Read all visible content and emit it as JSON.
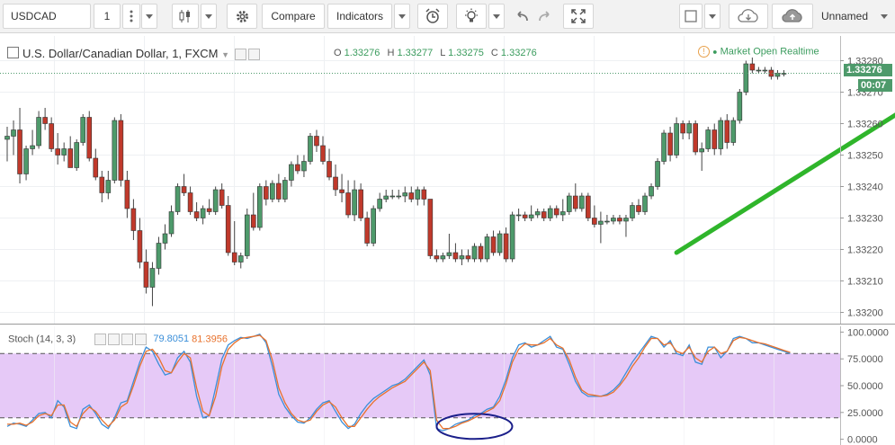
{
  "toolbar": {
    "symbol": "USDCAD",
    "interval": "1",
    "compare_label": "Compare",
    "indicators_label": "Indicators",
    "layout_name": "Unnamed"
  },
  "header": {
    "title": "U.S. Dollar/Canadian Dollar, 1, FXCM",
    "o_label": "O",
    "o": "1.33276",
    "h_label": "H",
    "h": "1.33277",
    "l_label": "L",
    "l": "1.33275",
    "c_label": "C",
    "c": "1.33276",
    "market_status": "Market Open",
    "realtime": "Realtime",
    "price_tag": "1.33276",
    "countdown": "00:07"
  },
  "stoch_legend": {
    "name": "Stoch (14, 3, 3)",
    "k": "79.8051",
    "d": "81.3956"
  },
  "colors": {
    "up": "#4e9a6b",
    "down": "#c0392b",
    "k_line": "#3b8fd9",
    "d_line": "#e8722d",
    "band_fill": "#e6c9f7",
    "arrow": "#2fb52b",
    "ellipse": "#1b1f8a"
  },
  "chart_data": [
    {
      "type": "candlestick",
      "title": "U.S. Dollar/Canadian Dollar, 1, FXCM",
      "y_ticks": [
        "1.33280",
        "1.33270",
        "1.33260",
        "1.33250",
        "1.33240",
        "1.33230",
        "1.33220",
        "1.33210",
        "1.33200"
      ],
      "y_tick_values": [
        1.3328,
        1.3327,
        1.3326,
        1.3325,
        1.3324,
        1.3323,
        1.3322,
        1.3321,
        1.332
      ],
      "ylim": [
        1.33197,
        1.33285
      ],
      "last_price": 1.33276,
      "annotations": [
        {
          "type": "arrow",
          "from": [
            106,
            1.33219
          ],
          "to": [
            148,
            1.33272
          ],
          "color": "green"
        }
      ],
      "candles": [
        [
          1.33255,
          1.33259,
          1.33248,
          1.33256
        ],
        [
          1.33256,
          1.33261,
          1.3325,
          1.33258
        ],
        [
          1.33258,
          1.33265,
          1.33241,
          1.33244
        ],
        [
          1.33244,
          1.33253,
          1.33242,
          1.33252
        ],
        [
          1.33252,
          1.33258,
          1.3325,
          1.33253
        ],
        [
          1.33253,
          1.33264,
          1.33252,
          1.33262
        ],
        [
          1.33262,
          1.33265,
          1.33258,
          1.3326
        ],
        [
          1.3326,
          1.33262,
          1.33251,
          1.33252
        ],
        [
          1.33252,
          1.33257,
          1.33247,
          1.3325
        ],
        [
          1.3325,
          1.33254,
          1.33248,
          1.33252
        ],
        [
          1.33252,
          1.33256,
          1.33246,
          1.33246
        ],
        [
          1.33246,
          1.33255,
          1.33245,
          1.33254
        ],
        [
          1.33254,
          1.33263,
          1.33253,
          1.33262
        ],
        [
          1.33262,
          1.33264,
          1.33248,
          1.33249
        ],
        [
          1.33249,
          1.33252,
          1.33242,
          1.33243
        ],
        [
          1.33243,
          1.33245,
          1.33235,
          1.33238
        ],
        [
          1.33238,
          1.33245,
          1.33236,
          1.33242
        ],
        [
          1.33242,
          1.33262,
          1.33241,
          1.33261
        ],
        [
          1.33261,
          1.33263,
          1.3324,
          1.33242
        ],
        [
          1.33242,
          1.33245,
          1.3323,
          1.33233
        ],
        [
          1.33233,
          1.33236,
          1.33223,
          1.33226
        ],
        [
          1.33226,
          1.3323,
          1.33214,
          1.33216
        ],
        [
          1.33216,
          1.3322,
          1.33206,
          1.33208
        ],
        [
          1.33208,
          1.33216,
          1.33202,
          1.33214
        ],
        [
          1.33214,
          1.33224,
          1.33212,
          1.33222
        ],
        [
          1.33222,
          1.33228,
          1.3322,
          1.33225
        ],
        [
          1.33225,
          1.33234,
          1.33224,
          1.33232
        ],
        [
          1.33232,
          1.33241,
          1.33231,
          1.3324
        ],
        [
          1.3324,
          1.33244,
          1.33237,
          1.33238
        ],
        [
          1.33238,
          1.3324,
          1.33231,
          1.33232
        ],
        [
          1.33232,
          1.33235,
          1.33229,
          1.3323
        ],
        [
          1.3323,
          1.33234,
          1.33228,
          1.33233
        ],
        [
          1.33233,
          1.33236,
          1.33231,
          1.33232
        ],
        [
          1.33232,
          1.3324,
          1.33231,
          1.33239
        ],
        [
          1.33239,
          1.33241,
          1.33233,
          1.33234
        ],
        [
          1.33234,
          1.33237,
          1.33218,
          1.33219
        ],
        [
          1.33219,
          1.33229,
          1.33215,
          1.33216
        ],
        [
          1.33216,
          1.33219,
          1.33214,
          1.33218
        ],
        [
          1.33218,
          1.33233,
          1.33217,
          1.33231
        ],
        [
          1.33231,
          1.33238,
          1.33226,
          1.33227
        ],
        [
          1.33227,
          1.33241,
          1.33226,
          1.3324
        ],
        [
          1.3324,
          1.33242,
          1.33234,
          1.33236
        ],
        [
          1.33236,
          1.33242,
          1.33235,
          1.33241
        ],
        [
          1.33241,
          1.33244,
          1.33235,
          1.33236
        ],
        [
          1.33236,
          1.33243,
          1.33235,
          1.33242
        ],
        [
          1.33242,
          1.33248,
          1.3324,
          1.33247
        ],
        [
          1.33247,
          1.3325,
          1.33244,
          1.33245
        ],
        [
          1.33245,
          1.3325,
          1.33243,
          1.33248
        ],
        [
          1.33248,
          1.33257,
          1.33247,
          1.33256
        ],
        [
          1.33256,
          1.33258,
          1.33251,
          1.33253
        ],
        [
          1.33253,
          1.33256,
          1.33247,
          1.33248
        ],
        [
          1.33248,
          1.33252,
          1.33242,
          1.33243
        ],
        [
          1.33243,
          1.33247,
          1.33237,
          1.33239
        ],
        [
          1.33239,
          1.33244,
          1.33235,
          1.33238
        ],
        [
          1.33238,
          1.33242,
          1.3323,
          1.33231
        ],
        [
          1.33231,
          1.33242,
          1.33229,
          1.33239
        ],
        [
          1.33239,
          1.33241,
          1.33229,
          1.3323
        ],
        [
          1.3323,
          1.33232,
          1.33221,
          1.33222
        ],
        [
          1.33222,
          1.33234,
          1.33221,
          1.33233
        ],
        [
          1.33233,
          1.33238,
          1.33232,
          1.33236
        ],
        [
          1.33236,
          1.33239,
          1.33235,
          1.33237
        ],
        [
          1.33237,
          1.33239,
          1.33236,
          1.33237
        ],
        [
          1.33237,
          1.33239,
          1.33236,
          1.33237
        ],
        [
          1.33237,
          1.3324,
          1.33235,
          1.33238
        ],
        [
          1.33238,
          1.3324,
          1.33235,
          1.33236
        ],
        [
          1.33236,
          1.3324,
          1.33234,
          1.33239
        ],
        [
          1.33239,
          1.3324,
          1.33234,
          1.33236
        ],
        [
          1.33236,
          1.33236,
          1.33217,
          1.33218
        ],
        [
          1.33218,
          1.3322,
          1.33216,
          1.33217
        ],
        [
          1.33217,
          1.33219,
          1.33216,
          1.33218
        ],
        [
          1.33218,
          1.33225,
          1.33217,
          1.33219
        ],
        [
          1.33219,
          1.33222,
          1.33216,
          1.33217
        ],
        [
          1.33217,
          1.3322,
          1.33215,
          1.33218
        ],
        [
          1.33218,
          1.3322,
          1.33216,
          1.33217
        ],
        [
          1.33217,
          1.33222,
          1.33216,
          1.33221
        ],
        [
          1.33221,
          1.33222,
          1.33216,
          1.33217
        ],
        [
          1.33217,
          1.33225,
          1.33216,
          1.33224
        ],
        [
          1.33224,
          1.33226,
          1.33218,
          1.33219
        ],
        [
          1.33219,
          1.33226,
          1.33218,
          1.33225
        ],
        [
          1.33225,
          1.33227,
          1.33216,
          1.33217
        ],
        [
          1.33217,
          1.33232,
          1.33216,
          1.33231
        ],
        [
          1.33231,
          1.33233,
          1.33229,
          1.33231
        ],
        [
          1.33231,
          1.33232,
          1.33229,
          1.3323
        ],
        [
          1.3323,
          1.33234,
          1.33229,
          1.33231
        ],
        [
          1.33231,
          1.33233,
          1.3323,
          1.33232
        ],
        [
          1.33232,
          1.33233,
          1.33229,
          1.3323
        ],
        [
          1.3323,
          1.33234,
          1.33229,
          1.33233
        ],
        [
          1.33233,
          1.33234,
          1.3323,
          1.33231
        ],
        [
          1.33231,
          1.33236,
          1.33229,
          1.33232
        ],
        [
          1.33232,
          1.33238,
          1.33231,
          1.33237
        ],
        [
          1.33237,
          1.33241,
          1.33232,
          1.33233
        ],
        [
          1.33233,
          1.33238,
          1.33232,
          1.33237
        ],
        [
          1.33237,
          1.33238,
          1.33229,
          1.3323
        ],
        [
          1.3323,
          1.33234,
          1.33227,
          1.33228
        ],
        [
          1.33228,
          1.33232,
          1.33222,
          1.33229
        ],
        [
          1.33229,
          1.33231,
          1.33228,
          1.33229
        ],
        [
          1.33229,
          1.33231,
          1.33228,
          1.3323
        ],
        [
          1.3323,
          1.33231,
          1.33228,
          1.33229
        ],
        [
          1.33229,
          1.33231,
          1.33224,
          1.3323
        ],
        [
          1.3323,
          1.33235,
          1.33229,
          1.33234
        ],
        [
          1.33234,
          1.33236,
          1.33231,
          1.33232
        ],
        [
          1.33232,
          1.33238,
          1.33231,
          1.33237
        ],
        [
          1.33237,
          1.33241,
          1.33236,
          1.3324
        ],
        [
          1.3324,
          1.33249,
          1.33239,
          1.33248
        ],
        [
          1.33248,
          1.33258,
          1.33247,
          1.33257
        ],
        [
          1.33257,
          1.33259,
          1.33248,
          1.3325
        ],
        [
          1.3325,
          1.33262,
          1.33249,
          1.3326
        ],
        [
          1.3326,
          1.33261,
          1.33255,
          1.33257
        ],
        [
          1.33257,
          1.33261,
          1.33255,
          1.3326
        ],
        [
          1.3326,
          1.33261,
          1.3325,
          1.33251
        ],
        [
          1.33251,
          1.33254,
          1.33245,
          1.33252
        ],
        [
          1.33252,
          1.33259,
          1.33251,
          1.33258
        ],
        [
          1.33258,
          1.3326,
          1.3325,
          1.33252
        ],
        [
          1.33252,
          1.33262,
          1.3325,
          1.33261
        ],
        [
          1.33261,
          1.33263,
          1.33252,
          1.33254
        ],
        [
          1.33254,
          1.33262,
          1.33253,
          1.33261
        ],
        [
          1.33261,
          1.33271,
          1.3326,
          1.3327
        ],
        [
          1.3327,
          1.3328,
          1.33269,
          1.33279
        ],
        [
          1.33279,
          1.33281,
          1.33276,
          1.33277
        ],
        [
          1.33277,
          1.33278,
          1.33276,
          1.33277
        ],
        [
          1.33277,
          1.33278,
          1.33276,
          1.33277
        ],
        [
          1.33277,
          1.33278,
          1.33274,
          1.33275
        ],
        [
          1.33275,
          1.33277,
          1.33274,
          1.33276
        ],
        [
          1.33276,
          1.33277,
          1.33275,
          1.33276
        ]
      ]
    },
    {
      "type": "line",
      "title": "Stoch (14, 3, 3)",
      "y_ticks": [
        "100.0000",
        "75.0000",
        "50.0000",
        "25.0000",
        "0.0000"
      ],
      "y_tick_values": [
        100,
        75,
        50,
        25,
        0
      ],
      "ylim": [
        -2,
        102
      ],
      "bands": [
        20,
        80
      ],
      "series": [
        {
          "name": "79.8051",
          "values": [
            12,
            15,
            14,
            12,
            18,
            24,
            25,
            20,
            36,
            30,
            12,
            10,
            28,
            32,
            24,
            14,
            10,
            20,
            34,
            36,
            54,
            72,
            86,
            82,
            70,
            60,
            62,
            76,
            82,
            72,
            40,
            20,
            22,
            48,
            75,
            88,
            92,
            95,
            94,
            96,
            98,
            90,
            68,
            42,
            30,
            22,
            16,
            15,
            20,
            28,
            34,
            36,
            26,
            16,
            10,
            14,
            24,
            32,
            38,
            42,
            46,
            50,
            52,
            56,
            62,
            68,
            74,
            60,
            10,
            8,
            10,
            14,
            16,
            18,
            22,
            24,
            28,
            30,
            40,
            56,
            76,
            88,
            90,
            86,
            88,
            92,
            96,
            86,
            84,
            70,
            54,
            44,
            40,
            40,
            40,
            42,
            46,
            52,
            62,
            72,
            80,
            88,
            96,
            94,
            86,
            92,
            80,
            78,
            88,
            72,
            70,
            86,
            86,
            76,
            82,
            94,
            96,
            94,
            90,
            90,
            88,
            86,
            84,
            82,
            80
          ]
        },
        {
          "name": "81.3956",
          "values": [
            14,
            14,
            15,
            13,
            16,
            22,
            24,
            22,
            32,
            32,
            16,
            12,
            24,
            30,
            26,
            18,
            12,
            18,
            30,
            34,
            50,
            68,
            82,
            84,
            76,
            64,
            62,
            72,
            80,
            76,
            48,
            26,
            22,
            40,
            68,
            84,
            90,
            94,
            95,
            96,
            97,
            92,
            74,
            48,
            34,
            24,
            18,
            16,
            18,
            26,
            32,
            35,
            30,
            20,
            12,
            12,
            20,
            28,
            35,
            40,
            44,
            48,
            51,
            54,
            60,
            66,
            72,
            64,
            18,
            10,
            10,
            12,
            15,
            17,
            20,
            23,
            26,
            29,
            36,
            52,
            72,
            84,
            89,
            88,
            88,
            90,
            94,
            88,
            85,
            74,
            58,
            46,
            42,
            41,
            40,
            41,
            44,
            50,
            58,
            68,
            76,
            86,
            94,
            94,
            88,
            90,
            82,
            80,
            86,
            76,
            72,
            82,
            86,
            80,
            82,
            92,
            95,
            94,
            92,
            90,
            89,
            87,
            85,
            83,
            81
          ]
        }
      ]
    }
  ]
}
